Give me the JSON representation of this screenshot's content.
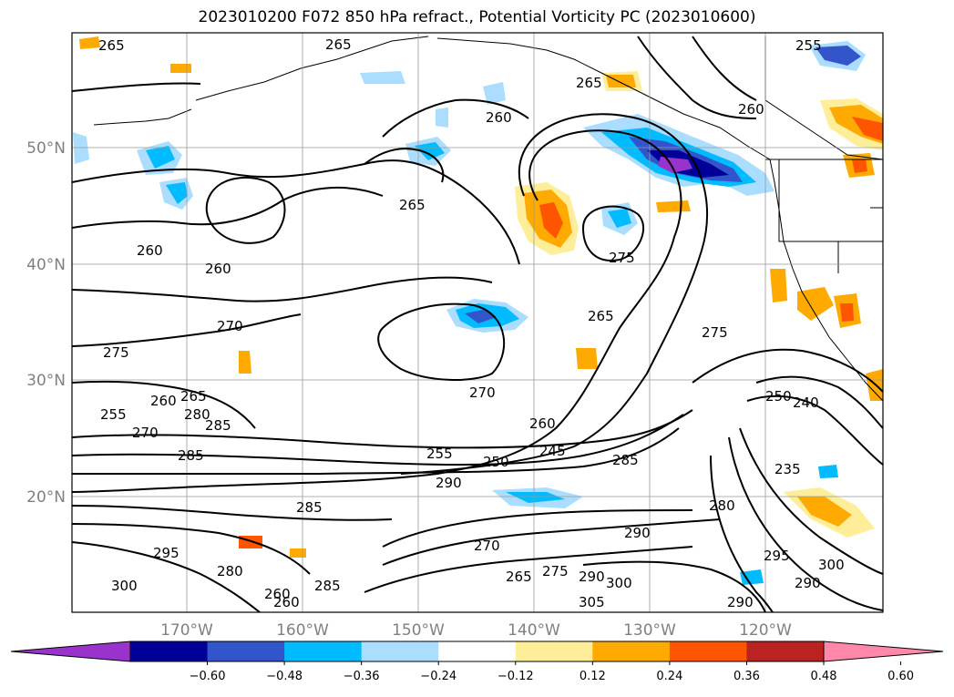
{
  "title": "2023010200 F072 850 hPa refract., Potential Vorticity PC (2023010600)",
  "lat_labels": [
    "50°N",
    "40°N",
    "30°N",
    "20°N"
  ],
  "lon_labels": [
    "170°W",
    "160°W",
    "150°W",
    "140°W",
    "130°W",
    "120°W"
  ],
  "colorbar": {
    "ticks": [
      "−0.60",
      "−0.48",
      "−0.36",
      "−0.24",
      "−0.12",
      "0.12",
      "0.24",
      "0.36",
      "0.48",
      "0.60"
    ],
    "colors": [
      "#9933cc",
      "#000099",
      "#3355cc",
      "#00bbff",
      "#aaddff",
      "#ffffff",
      "#ffee99",
      "#ffaa00",
      "#ff5500",
      "#bb2222",
      "#ff88aa"
    ]
  },
  "contour_labels": [
    "265",
    "265",
    "265",
    "255",
    "260",
    "260",
    "260",
    "260",
    "265",
    "275",
    "270",
    "265",
    "275",
    "275",
    "270",
    "255",
    "260",
    "265",
    "270",
    "280",
    "285",
    "285",
    "255",
    "250",
    "245",
    "290",
    "285",
    "260",
    "240",
    "250",
    "235",
    "285",
    "280",
    "270",
    "275",
    "265",
    "290",
    "300",
    "305",
    "290",
    "295",
    "290",
    "300",
    "290",
    "295",
    "300",
    "280",
    "260",
    "260",
    "285"
  ]
}
